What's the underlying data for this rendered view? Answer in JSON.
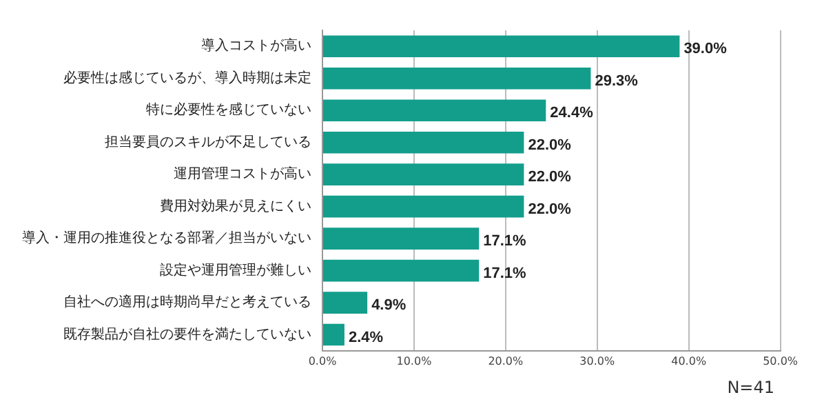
{
  "chart_data": {
    "type": "bar",
    "orientation": "horizontal",
    "categories": [
      "導入コストが高い",
      "必要性は感じているが、導入時期は未定",
      "特に必要性を感じていない",
      "担当要員のスキルが不足している",
      "運用管理コストが高い",
      "費用対効果が見えにくい",
      "導入・運用の推進役となる部署／担当がいない",
      "設定や運用管理が難しい",
      "自社への適用は時期尚早だと考えている",
      "既存製品が自社の要件を満たしていない"
    ],
    "values": [
      39.0,
      29.3,
      24.4,
      22.0,
      22.0,
      22.0,
      17.1,
      17.1,
      4.9,
      2.4
    ],
    "value_labels": [
      "39.0%",
      "29.3%",
      "24.4%",
      "22.0%",
      "22.0%",
      "22.0%",
      "17.1%",
      "17.1%",
      "4.9%",
      "2.4%"
    ],
    "color": "#139e8c",
    "xlim": [
      0,
      50
    ],
    "xticks": [
      {
        "value": 0,
        "label": "0.0%"
      },
      {
        "value": 10,
        "label": "10.0%"
      },
      {
        "value": 20,
        "label": "20.0%"
      },
      {
        "value": 30,
        "label": "30.0%"
      },
      {
        "value": 40,
        "label": "40.0%"
      },
      {
        "value": 50,
        "label": "50.0%"
      }
    ],
    "grid": "x",
    "legend": false,
    "annotations": [
      "N=41"
    ]
  }
}
